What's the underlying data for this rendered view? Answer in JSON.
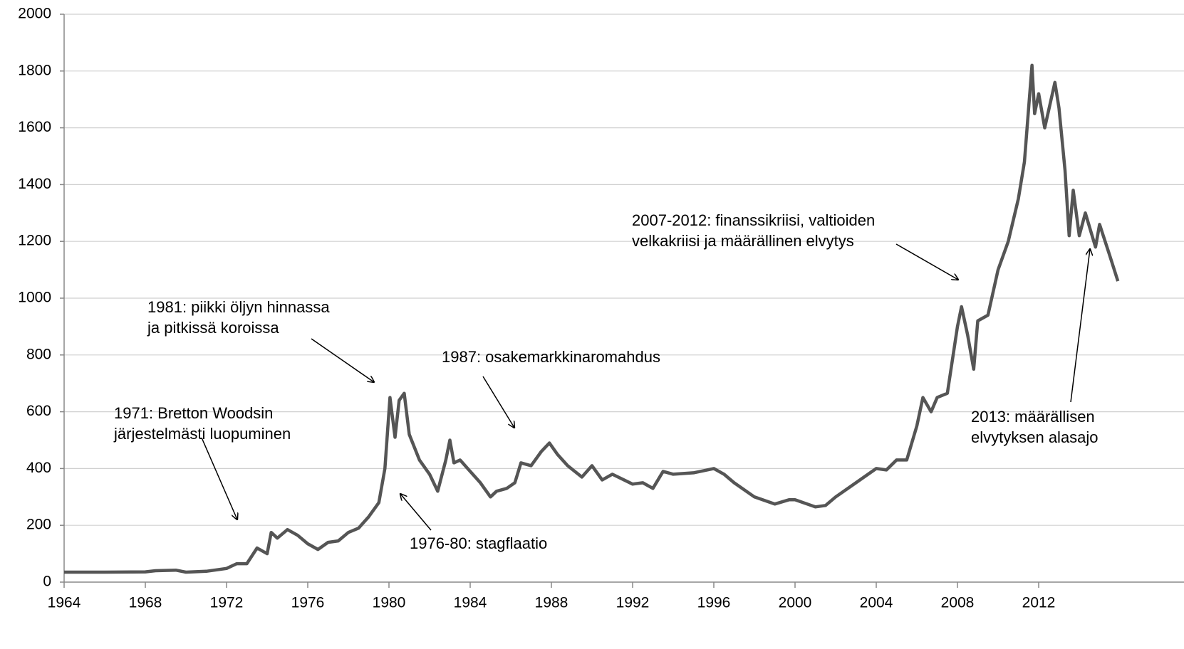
{
  "chart_data": {
    "type": "line",
    "x": [
      1964,
      1966,
      1968,
      1968.5,
      1969.5,
      1970,
      1971,
      1972,
      1972.5,
      1973,
      1973.5,
      1974,
      1974.2,
      1974.5,
      1975,
      1975.5,
      1976,
      1976.5,
      1977,
      1977.5,
      1978,
      1978.5,
      1979,
      1979.5,
      1979.8,
      1980.05,
      1980.3,
      1980.5,
      1980.75,
      1981,
      1981.5,
      1982,
      1982.4,
      1982.8,
      1983,
      1983.2,
      1983.5,
      1984,
      1984.5,
      1985,
      1985.3,
      1985.8,
      1986.2,
      1986.5,
      1987,
      1987.5,
      1987.9,
      1988.3,
      1988.8,
      1989.5,
      1990,
      1990.5,
      1991,
      1992,
      1992.5,
      1993,
      1993.5,
      1994,
      1995,
      1996,
      1996.5,
      1997,
      1998,
      1999,
      1999.7,
      2000,
      2001,
      2001.5,
      2002,
      2003,
      2004,
      2004.5,
      2005,
      2005.5,
      2006,
      2006.3,
      2006.7,
      2007,
      2007.5,
      2008,
      2008.2,
      2008.5,
      2008.8,
      2009,
      2009.5,
      2010,
      2010.5,
      2011,
      2011.3,
      2011.67,
      2011.8,
      2012,
      2012.3,
      2012.8,
      2013,
      2013.3,
      2013.5,
      2013.7,
      2014,
      2014.3,
      2014.8,
      2015,
      2015.5,
      2015.9
    ],
    "series": [
      {
        "color": "#555555",
        "values": [
          35,
          35,
          36,
          40,
          42,
          35,
          38,
          48,
          65,
          65,
          120,
          100,
          175,
          155,
          185,
          165,
          135,
          115,
          140,
          145,
          175,
          190,
          230,
          280,
          400,
          650,
          510,
          640,
          665,
          520,
          430,
          380,
          320,
          430,
          500,
          420,
          430,
          390,
          350,
          300,
          320,
          330,
          350,
          420,
          410,
          460,
          490,
          450,
          410,
          370,
          410,
          360,
          380,
          345,
          350,
          330,
          390,
          380,
          385,
          400,
          380,
          350,
          300,
          275,
          290,
          290,
          265,
          270,
          300,
          350,
          400,
          395,
          430,
          430,
          550,
          650,
          600,
          650,
          665,
          900,
          970,
          870,
          750,
          920,
          940,
          1100,
          1200,
          1350,
          1480,
          1820,
          1650,
          1720,
          1600,
          1760,
          1670,
          1450,
          1220,
          1380,
          1220,
          1300,
          1180,
          1260,
          1150,
          1060
        ]
      }
    ],
    "xlim": [
      1964,
      2016
    ],
    "xticks": [
      1964,
      1968,
      1972,
      1976,
      1980,
      1984,
      1988,
      1992,
      1996,
      2000,
      2004,
      2008,
      2012
    ],
    "ylim": [
      0,
      2000
    ],
    "yticks": [
      0,
      200,
      400,
      600,
      800,
      1000,
      1200,
      1400,
      1600,
      1800,
      2000
    ],
    "grid": true,
    "annotations": [
      {
        "lines": [
          "1971: Bretton Woodsin",
          "järjestelmästi luopuminen"
        ]
      },
      {
        "lines": [
          "1981: piikki öljyn hinnassa",
          "ja pitkissä koroissa"
        ]
      },
      {
        "lines": [
          "1987: osakemarkkinaromahdus"
        ]
      },
      {
        "lines": [
          "1976-80: stagflaatio"
        ]
      },
      {
        "lines": [
          "2007-2012: finanssikriisi, valtioiden",
          "velkakriisi ja määrällinen elvytys"
        ]
      },
      {
        "lines": [
          "2013: määrällisen",
          "elvytyksen alasajo"
        ]
      }
    ]
  }
}
